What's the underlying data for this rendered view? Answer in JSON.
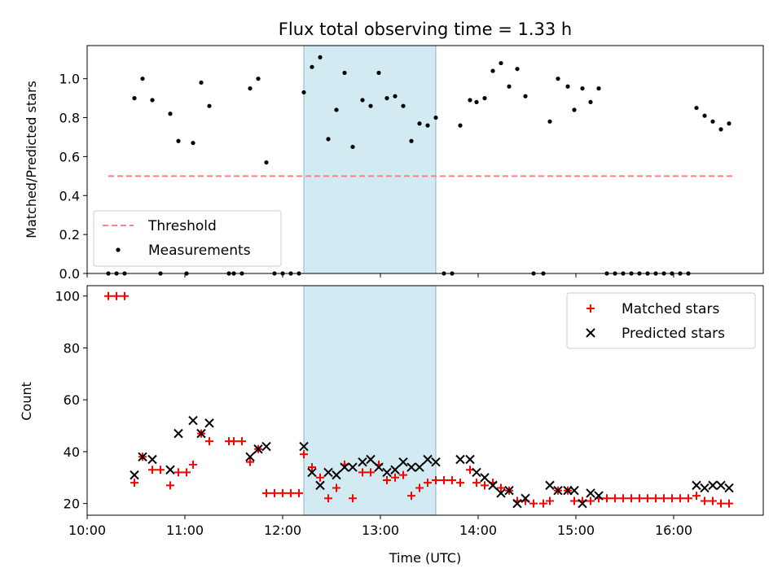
{
  "chart_data": {
    "title": "Flux total observing time = 1.33 h",
    "x_axis": {
      "label": "Time (UTC)",
      "range": [
        "10:00",
        "16:55"
      ],
      "ticks": [
        "10:00",
        "11:00",
        "12:00",
        "13:00",
        "14:00",
        "15:00",
        "16:00"
      ]
    },
    "shaded_interval": {
      "start": "12:13",
      "end": "13:34",
      "color": "#add8e6"
    },
    "panels": [
      {
        "type": "scatter",
        "ylabel": "Matched/Predicted stars",
        "ylim": [
          0,
          1.17
        ],
        "yticks": [
          "0.0",
          "0.2",
          "0.4",
          "0.6",
          "0.8",
          "1.0"
        ],
        "legend_position": "lower-left",
        "series": [
          {
            "name": "Threshold",
            "style": "dashed-line",
            "color": "#ff8080",
            "value": 0.5,
            "x_start": "10:13",
            "x_end": "16:37"
          },
          {
            "name": "Measurements",
            "style": "dots",
            "color": "#000000",
            "points": [
              [
                "10:13",
                0
              ],
              [
                "10:18",
                0
              ],
              [
                "10:23",
                0
              ],
              [
                "10:29",
                0.9
              ],
              [
                "10:34",
                1.0
              ],
              [
                "10:40",
                0.89
              ],
              [
                "10:45",
                0
              ],
              [
                "10:51",
                0.82
              ],
              [
                "10:56",
                0.68
              ],
              [
                "11:01",
                0
              ],
              [
                "11:05",
                0.67
              ],
              [
                "11:10",
                0.98
              ],
              [
                "11:15",
                0.86
              ],
              [
                "11:27",
                0
              ],
              [
                "11:30",
                0
              ],
              [
                "11:35",
                0
              ],
              [
                "11:40",
                0.95
              ],
              [
                "11:45",
                1.0
              ],
              [
                "11:50",
                0.57
              ],
              [
                "11:55",
                0
              ],
              [
                "12:00",
                0
              ],
              [
                "12:05",
                0
              ],
              [
                "12:10",
                0
              ],
              [
                "12:13",
                0.93
              ],
              [
                "12:18",
                1.06
              ],
              [
                "12:23",
                1.11
              ],
              [
                "12:28",
                0.69
              ],
              [
                "12:33",
                0.84
              ],
              [
                "12:38",
                1.03
              ],
              [
                "12:43",
                0.65
              ],
              [
                "12:49",
                0.89
              ],
              [
                "12:54",
                0.86
              ],
              [
                "12:59",
                1.03
              ],
              [
                "13:04",
                0.9
              ],
              [
                "13:09",
                0.91
              ],
              [
                "13:14",
                0.86
              ],
              [
                "13:19",
                0.68
              ],
              [
                "13:24",
                0.77
              ],
              [
                "13:29",
                0.76
              ],
              [
                "13:34",
                0.8
              ],
              [
                "13:39",
                0
              ],
              [
                "13:44",
                0
              ],
              [
                "13:49",
                0.76
              ],
              [
                "13:55",
                0.89
              ],
              [
                "13:59",
                0.88
              ],
              [
                "14:04",
                0.9
              ],
              [
                "14:09",
                1.04
              ],
              [
                "14:14",
                1.08
              ],
              [
                "14:19",
                0.96
              ],
              [
                "14:24",
                1.05
              ],
              [
                "14:29",
                0.91
              ],
              [
                "14:34",
                0
              ],
              [
                "14:40",
                0
              ],
              [
                "14:44",
                0.78
              ],
              [
                "14:49",
                1.0
              ],
              [
                "14:55",
                0.96
              ],
              [
                "14:59",
                0.84
              ],
              [
                "15:04",
                0.95
              ],
              [
                "15:09",
                0.88
              ],
              [
                "15:14",
                0.95
              ],
              [
                "15:19",
                0
              ],
              [
                "15:24",
                0
              ],
              [
                "15:29",
                0
              ],
              [
                "15:34",
                0
              ],
              [
                "15:39",
                0
              ],
              [
                "15:44",
                0
              ],
              [
                "15:49",
                0
              ],
              [
                "15:54",
                0
              ],
              [
                "15:59",
                0
              ],
              [
                "16:04",
                0
              ],
              [
                "16:09",
                0
              ],
              [
                "16:14",
                0.85
              ],
              [
                "16:19",
                0.81
              ],
              [
                "16:24",
                0.78
              ],
              [
                "16:29",
                0.74
              ],
              [
                "16:34",
                0.77
              ]
            ]
          }
        ]
      },
      {
        "type": "scatter",
        "ylabel": "Count",
        "ylim": [
          15.5,
          104
        ],
        "yticks": [
          "20",
          "40",
          "60",
          "80",
          "100"
        ],
        "legend_position": "upper-right",
        "series": [
          {
            "name": "Matched stars",
            "marker": "plus",
            "color": "#ff0000",
            "points": [
              [
                "10:13",
                100
              ],
              [
                "10:18",
                100
              ],
              [
                "10:23",
                100
              ],
              [
                "10:29",
                28
              ],
              [
                "10:34",
                38
              ],
              [
                "10:40",
                33
              ],
              [
                "10:45",
                33
              ],
              [
                "10:51",
                27
              ],
              [
                "10:56",
                32
              ],
              [
                "11:01",
                32
              ],
              [
                "11:05",
                35
              ],
              [
                "11:10",
                47
              ],
              [
                "11:15",
                44
              ],
              [
                "11:27",
                44
              ],
              [
                "11:30",
                44
              ],
              [
                "11:35",
                44
              ],
              [
                "11:40",
                36
              ],
              [
                "11:45",
                41
              ],
              [
                "11:50",
                24
              ],
              [
                "11:55",
                24
              ],
              [
                "12:00",
                24
              ],
              [
                "12:05",
                24
              ],
              [
                "12:10",
                24
              ],
              [
                "12:13",
                39
              ],
              [
                "12:18",
                34
              ],
              [
                "12:23",
                30
              ],
              [
                "12:28",
                22
              ],
              [
                "12:33",
                26
              ],
              [
                "12:38",
                35
              ],
              [
                "12:43",
                22
              ],
              [
                "12:49",
                32
              ],
              [
                "12:54",
                32
              ],
              [
                "12:59",
                35
              ],
              [
                "13:04",
                29
              ],
              [
                "13:09",
                30
              ],
              [
                "13:14",
                31
              ],
              [
                "13:19",
                23
              ],
              [
                "13:24",
                26
              ],
              [
                "13:29",
                28
              ],
              [
                "13:34",
                29
              ],
              [
                "13:39",
                29
              ],
              [
                "13:44",
                29
              ],
              [
                "13:49",
                28
              ],
              [
                "13:55",
                33
              ],
              [
                "13:59",
                28
              ],
              [
                "14:04",
                27
              ],
              [
                "14:09",
                28
              ],
              [
                "14:14",
                26
              ],
              [
                "14:19",
                25
              ],
              [
                "14:24",
                21
              ],
              [
                "14:29",
                21
              ],
              [
                "14:34",
                20
              ],
              [
                "14:40",
                20
              ],
              [
                "14:44",
                21
              ],
              [
                "14:49",
                25
              ],
              [
                "14:55",
                25
              ],
              [
                "14:59",
                21
              ],
              [
                "15:04",
                21
              ],
              [
                "15:09",
                21
              ],
              [
                "15:14",
                22
              ],
              [
                "15:19",
                22
              ],
              [
                "15:24",
                22
              ],
              [
                "15:29",
                22
              ],
              [
                "15:34",
                22
              ],
              [
                "15:39",
                22
              ],
              [
                "15:44",
                22
              ],
              [
                "15:49",
                22
              ],
              [
                "15:54",
                22
              ],
              [
                "15:59",
                22
              ],
              [
                "16:04",
                22
              ],
              [
                "16:09",
                22
              ],
              [
                "16:14",
                23
              ],
              [
                "16:19",
                21
              ],
              [
                "16:24",
                21
              ],
              [
                "16:29",
                20
              ],
              [
                "16:34",
                20
              ]
            ]
          },
          {
            "name": "Predicted stars",
            "marker": "x",
            "color": "#000000",
            "points": [
              [
                "10:29",
                31
              ],
              [
                "10:34",
                38
              ],
              [
                "10:40",
                37
              ],
              [
                "10:51",
                33
              ],
              [
                "10:56",
                47
              ],
              [
                "11:05",
                52
              ],
              [
                "11:10",
                47
              ],
              [
                "11:15",
                51
              ],
              [
                "11:40",
                38
              ],
              [
                "11:45",
                41
              ],
              [
                "11:50",
                42
              ],
              [
                "12:13",
                42
              ],
              [
                "12:18",
                32
              ],
              [
                "12:23",
                27
              ],
              [
                "12:28",
                32
              ],
              [
                "12:33",
                31
              ],
              [
                "12:38",
                34
              ],
              [
                "12:43",
                34
              ],
              [
                "12:49",
                36
              ],
              [
                "12:54",
                37
              ],
              [
                "12:59",
                34
              ],
              [
                "13:04",
                32
              ],
              [
                "13:09",
                33
              ],
              [
                "13:14",
                36
              ],
              [
                "13:19",
                34
              ],
              [
                "13:24",
                34
              ],
              [
                "13:29",
                37
              ],
              [
                "13:34",
                36
              ],
              [
                "13:49",
                37
              ],
              [
                "13:55",
                37
              ],
              [
                "13:59",
                32
              ],
              [
                "14:04",
                30
              ],
              [
                "14:09",
                27
              ],
              [
                "14:14",
                24
              ],
              [
                "14:19",
                25
              ],
              [
                "14:24",
                20
              ],
              [
                "14:29",
                22
              ],
              [
                "14:44",
                27
              ],
              [
                "14:49",
                25
              ],
              [
                "14:55",
                25
              ],
              [
                "14:59",
                25
              ],
              [
                "15:04",
                20
              ],
              [
                "15:09",
                24
              ],
              [
                "15:14",
                23
              ],
              [
                "16:14",
                27
              ],
              [
                "16:19",
                26
              ],
              [
                "16:24",
                27
              ],
              [
                "16:29",
                27
              ],
              [
                "16:34",
                26
              ]
            ]
          }
        ]
      }
    ]
  }
}
